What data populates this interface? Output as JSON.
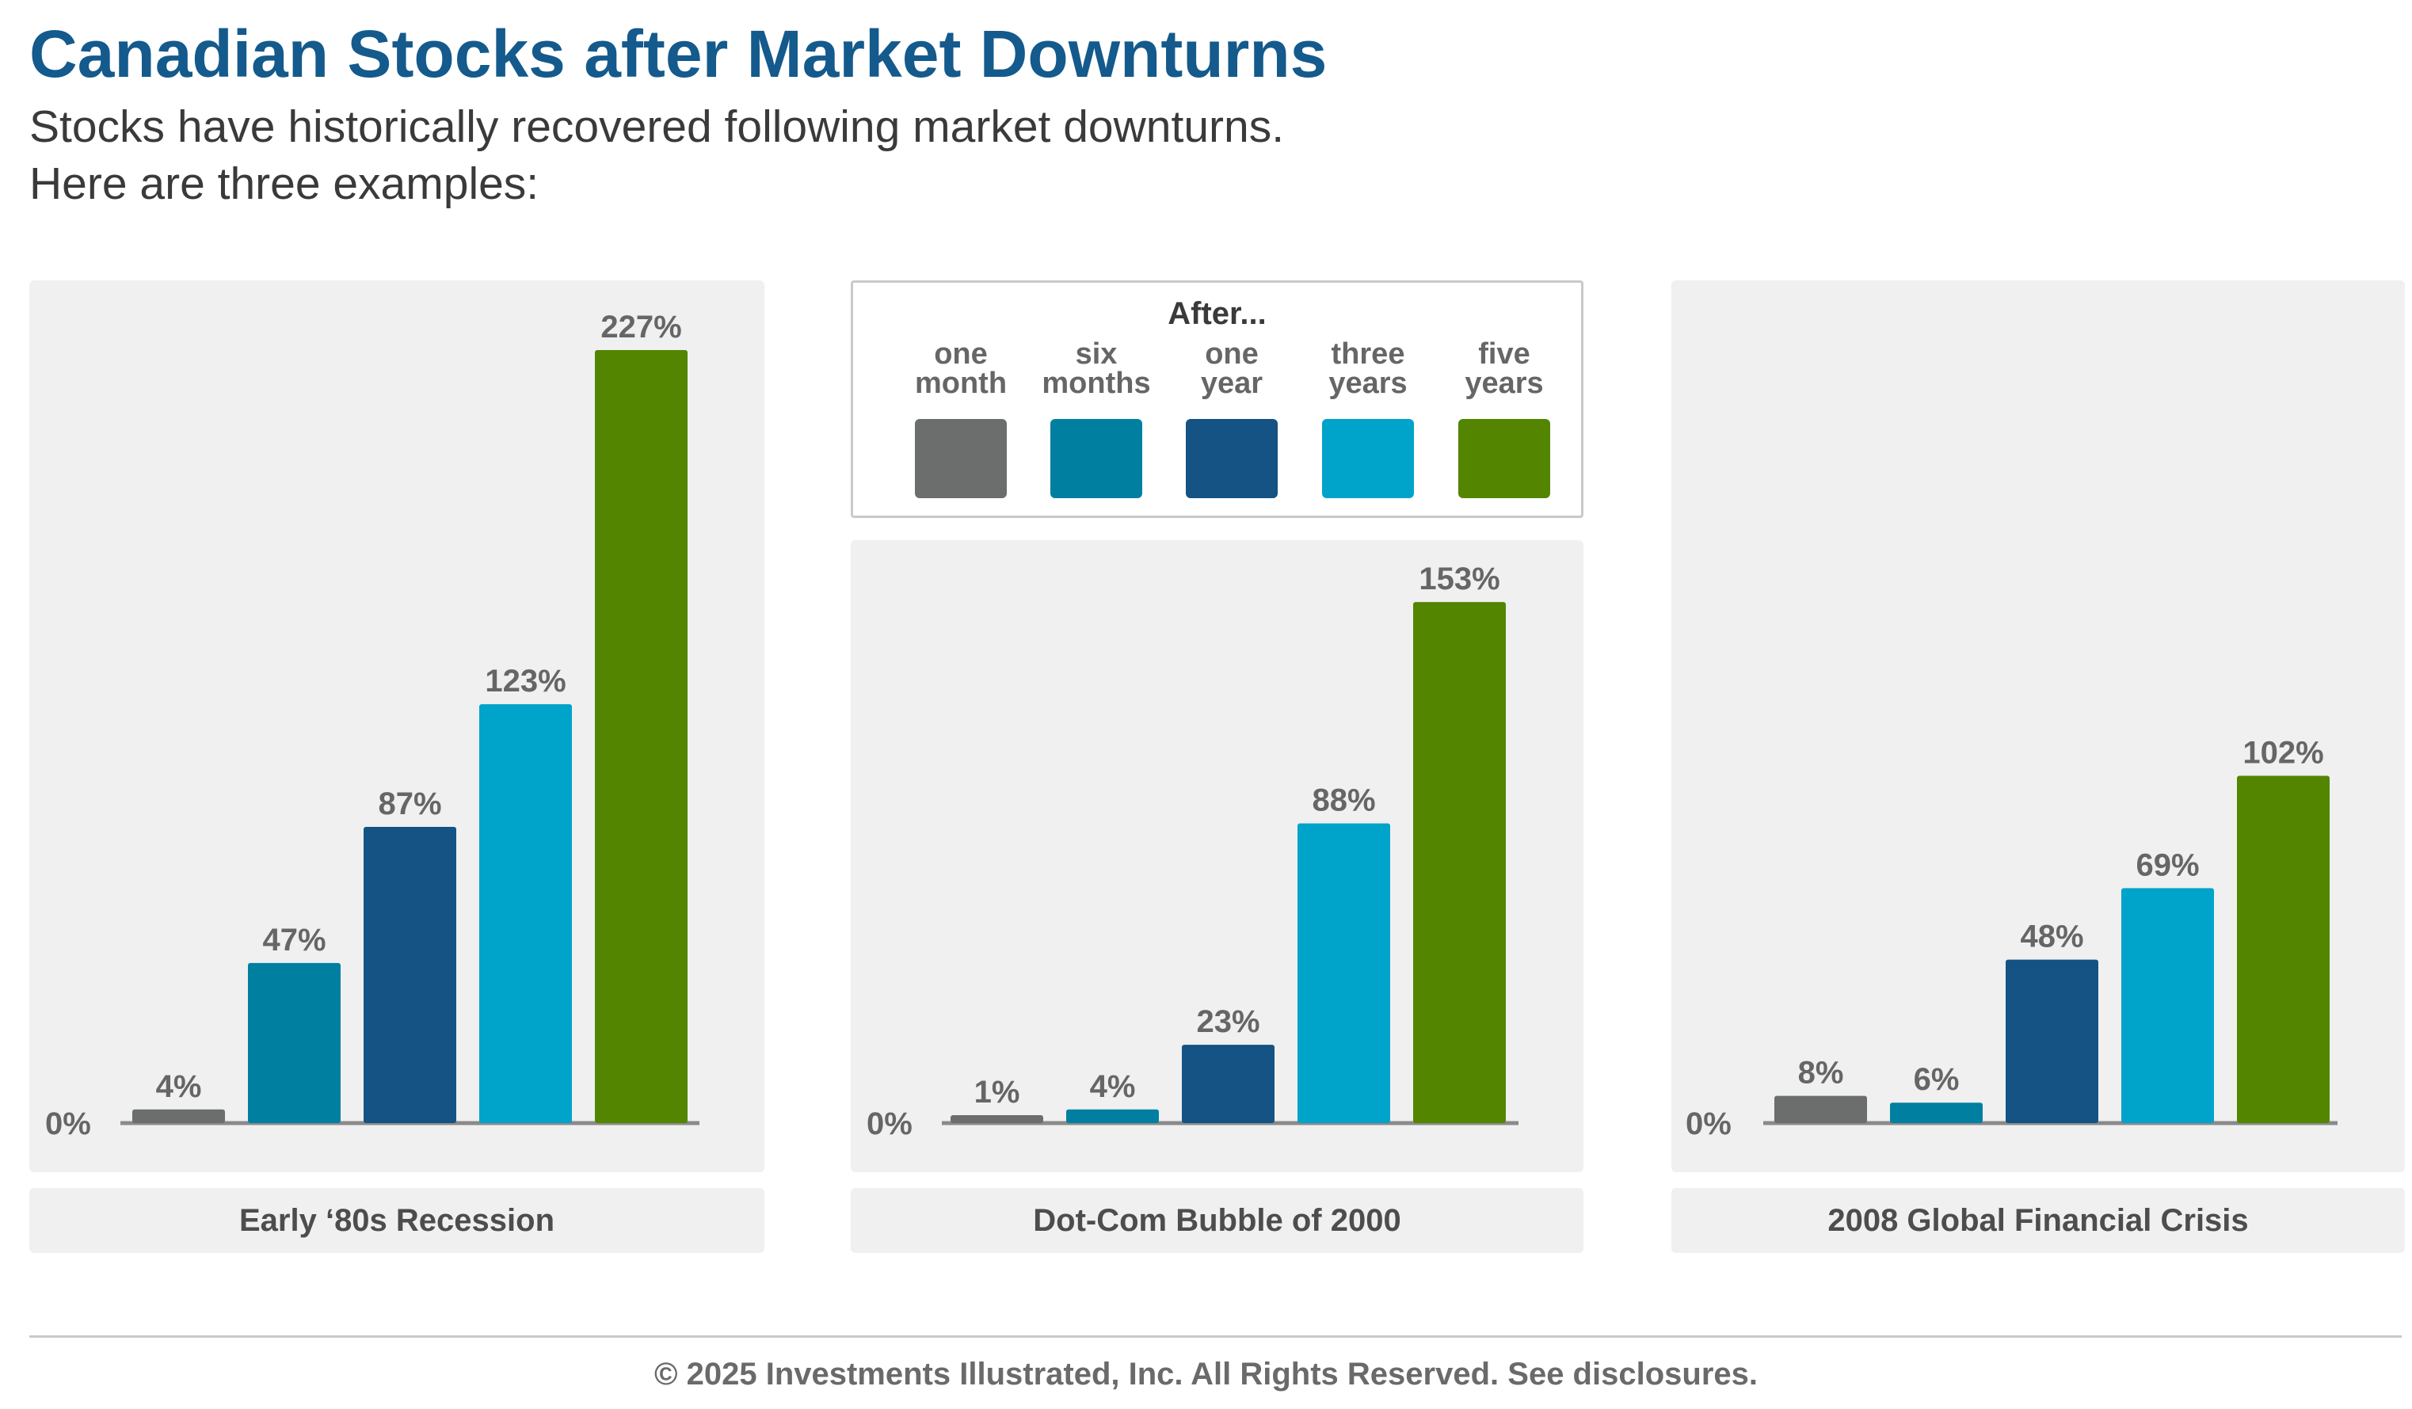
{
  "header": {
    "title": "Canadian Stocks after Market Downturns",
    "subtitle_line1": "Stocks have historically recovered following market downturns.",
    "subtitle_line2": "Here are three examples:"
  },
  "legend": {
    "heading": "After...",
    "items": [
      {
        "label": "one\nmonth",
        "color": "#6B6E6D"
      },
      {
        "label": "six\nmonths",
        "color": "#007FA1"
      },
      {
        "label": "one\nyear",
        "color": "#145384"
      },
      {
        "label": "three\nyears",
        "color": "#00A3C9"
      },
      {
        "label": "five\nyears",
        "color": "#538500"
      }
    ]
  },
  "chart_data": [
    {
      "type": "bar",
      "title": "Early ‘80s Recession",
      "categories": [
        "one month",
        "six months",
        "one year",
        "three years",
        "five years"
      ],
      "values": [
        4,
        47,
        87,
        123,
        227
      ],
      "labels": [
        "4%",
        "47%",
        "87%",
        "123%",
        "227%"
      ],
      "zero_label": "0%",
      "ylim": [
        0,
        227
      ]
    },
    {
      "type": "bar",
      "title": "Dot-Com Bubble of 2000",
      "categories": [
        "one month",
        "six months",
        "one year",
        "three years",
        "five years"
      ],
      "values": [
        1,
        4,
        23,
        88,
        153
      ],
      "labels": [
        "1%",
        "4%",
        "23%",
        "88%",
        "153%"
      ],
      "zero_label": "0%",
      "ylim": [
        0,
        227
      ]
    },
    {
      "type": "bar",
      "title": "2008 Global Financial Crisis",
      "categories": [
        "one month",
        "six months",
        "one year",
        "three years",
        "five years"
      ],
      "values": [
        8,
        6,
        48,
        69,
        102
      ],
      "labels": [
        "8%",
        "6%",
        "48%",
        "69%",
        "102%"
      ],
      "zero_label": "0%",
      "ylim": [
        0,
        227
      ]
    }
  ],
  "footer": {
    "copyright": "© 2025 Investments Illustrated, Inc. All Rights Reserved. See disclosures."
  }
}
